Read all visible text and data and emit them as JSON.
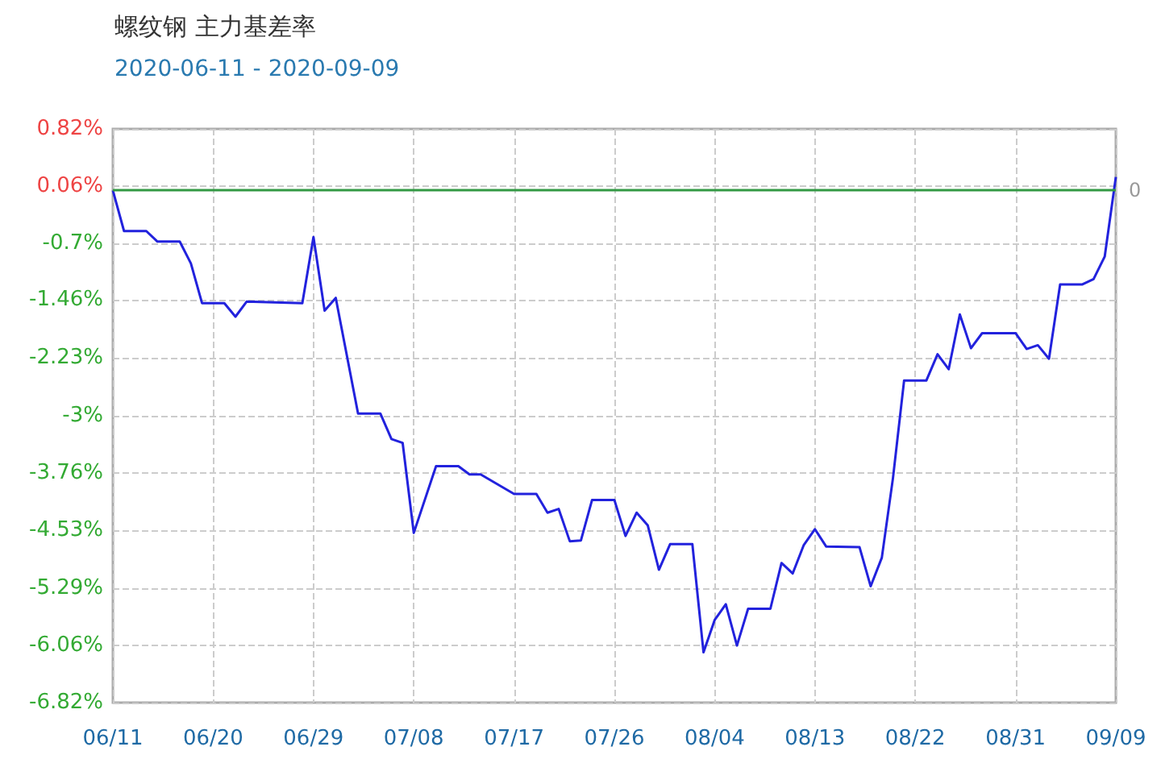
{
  "chart_data": {
    "type": "line",
    "title": "螺纹钢 主力基差率",
    "subtitle": "2020-06-11 - 2020-09-09",
    "x": [
      "2020-06-11",
      "2020-06-12",
      "2020-06-14",
      "2020-06-15",
      "2020-06-17",
      "2020-06-18",
      "2020-06-19",
      "2020-06-21",
      "2020-06-22",
      "2020-06-23",
      "2020-06-28",
      "2020-06-29",
      "2020-06-30",
      "2020-07-01",
      "2020-07-03",
      "2020-07-05",
      "2020-07-06",
      "2020-07-07",
      "2020-07-08",
      "2020-07-10",
      "2020-07-12",
      "2020-07-13",
      "2020-07-14",
      "2020-07-17",
      "2020-07-19",
      "2020-07-20",
      "2020-07-21",
      "2020-07-22",
      "2020-07-23",
      "2020-07-24",
      "2020-07-26",
      "2020-07-27",
      "2020-07-28",
      "2020-07-29",
      "2020-07-30",
      "2020-07-31",
      "2020-08-02",
      "2020-08-03",
      "2020-08-04",
      "2020-08-05",
      "2020-08-06",
      "2020-08-07",
      "2020-08-09",
      "2020-08-10",
      "2020-08-11",
      "2020-08-12",
      "2020-08-13",
      "2020-08-14",
      "2020-08-17",
      "2020-08-18",
      "2020-08-19",
      "2020-08-20",
      "2020-08-21",
      "2020-08-23",
      "2020-08-24",
      "2020-08-25",
      "2020-08-26",
      "2020-08-27",
      "2020-08-28",
      "2020-08-31",
      "2020-09-01",
      "2020-09-02",
      "2020-09-03",
      "2020-09-04",
      "2020-09-06",
      "2020-09-07",
      "2020-09-08",
      "2020-09-09"
    ],
    "series": [
      {
        "color": "#2222dd",
        "values": [
          0,
          -0.54,
          -0.54,
          -0.68,
          -0.68,
          -0.97,
          -1.5,
          -1.5,
          -1.68,
          -1.48,
          -1.5,
          -0.62,
          -1.6,
          -1.43,
          -2.97,
          -2.97,
          -3.31,
          -3.36,
          -4.56,
          -3.67,
          -3.67,
          -3.78,
          -3.78,
          -4.04,
          -4.04,
          -4.29,
          -4.24,
          -4.67,
          -4.66,
          -4.12,
          -4.12,
          -4.6,
          -4.29,
          -4.46,
          -5.05,
          -4.71,
          -4.71,
          -6.15,
          -5.72,
          -5.51,
          -6.06,
          -5.57,
          -5.57,
          -4.96,
          -5.1,
          -4.72,
          -4.51,
          -4.74,
          -4.75,
          -5.27,
          -4.89,
          -3.83,
          -2.53,
          -2.53,
          -2.18,
          -2.38,
          -1.65,
          -2.1,
          -1.9,
          -1.9,
          -2.11,
          -2.06,
          -2.24,
          -1.25,
          -1.25,
          -1.18,
          -0.88,
          0.18
        ]
      }
    ],
    "xlim": [
      "2020-06-11",
      "2020-09-09"
    ],
    "xticks": [
      {
        "value": "2020-06-11",
        "label": "06/11"
      },
      {
        "value": "2020-06-20",
        "label": "06/20"
      },
      {
        "value": "2020-06-29",
        "label": "06/29"
      },
      {
        "value": "2020-07-08",
        "label": "07/08"
      },
      {
        "value": "2020-07-17",
        "label": "07/17"
      },
      {
        "value": "2020-07-26",
        "label": "07/26"
      },
      {
        "value": "2020-08-04",
        "label": "08/04"
      },
      {
        "value": "2020-08-13",
        "label": "08/13"
      },
      {
        "value": "2020-08-22",
        "label": "08/22"
      },
      {
        "value": "2020-08-31",
        "label": "08/31"
      },
      {
        "value": "2020-09-09",
        "label": "09/09"
      }
    ],
    "ylim": [
      -6.82,
      0.82
    ],
    "yticks": [
      {
        "value": 0.82,
        "label": "0.82%"
      },
      {
        "value": 0.056,
        "label": "0.06%"
      },
      {
        "value": -0.708,
        "label": "-0.7%"
      },
      {
        "value": -1.46,
        "label": "-1.46%"
      },
      {
        "value": -2.23,
        "label": "-2.23%"
      },
      {
        "value": -3,
        "label": "-3%"
      },
      {
        "value": -3.764,
        "label": "-3.76%"
      },
      {
        "value": -4.528,
        "label": "-4.53%"
      },
      {
        "value": -5.292,
        "label": "-5.29%"
      },
      {
        "value": -6.056,
        "label": "-6.06%"
      },
      {
        "value": -6.82,
        "label": "-6.82%"
      }
    ],
    "grid": true,
    "ref_lines": [
      {
        "axis": "y",
        "value": 0,
        "label": "0",
        "color": "#339944"
      }
    ]
  }
}
